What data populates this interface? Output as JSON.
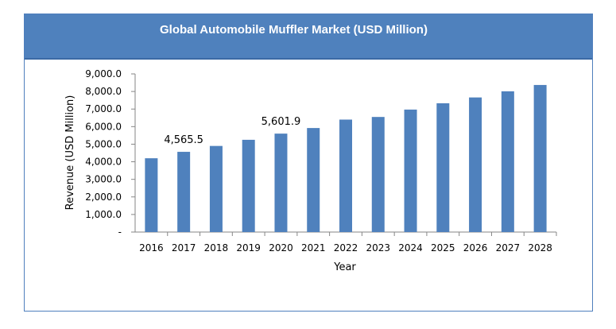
{
  "chart_data": {
    "type": "bar",
    "title": "Global Automobile Muffler Market (USD Million)",
    "xlabel": "Year",
    "ylabel": "Revenue (USD Million)",
    "categories": [
      "2016",
      "2017",
      "2018",
      "2019",
      "2020",
      "2021",
      "2022",
      "2023",
      "2024",
      "2025",
      "2026",
      "2027",
      "2028"
    ],
    "values": [
      4200,
      4565.5,
      4900,
      5250,
      5601.9,
      5920,
      6400,
      6550,
      6970,
      7330,
      7660,
      8010,
      8370
    ],
    "ylim": [
      0,
      9000
    ],
    "yticks": [
      {
        "value": 0,
        "label": "-"
      },
      {
        "value": 1000,
        "label": "1,000.0"
      },
      {
        "value": 2000,
        "label": "2,000.0"
      },
      {
        "value": 3000,
        "label": "3,000.0"
      },
      {
        "value": 4000,
        "label": "4,000.0"
      },
      {
        "value": 5000,
        "label": "5,000.0"
      },
      {
        "value": 6000,
        "label": "6,000.0"
      },
      {
        "value": 7000,
        "label": "7,000.0"
      },
      {
        "value": 8000,
        "label": "8,000.0"
      },
      {
        "value": 9000,
        "label": "9,000.0"
      }
    ],
    "data_labels": [
      {
        "category": "2017",
        "text": "4,565.5"
      },
      {
        "category": "2020",
        "text": "5,601.9"
      }
    ],
    "grid": false,
    "bar_color": "#4f81bd",
    "header_color": "#4f81bd"
  }
}
